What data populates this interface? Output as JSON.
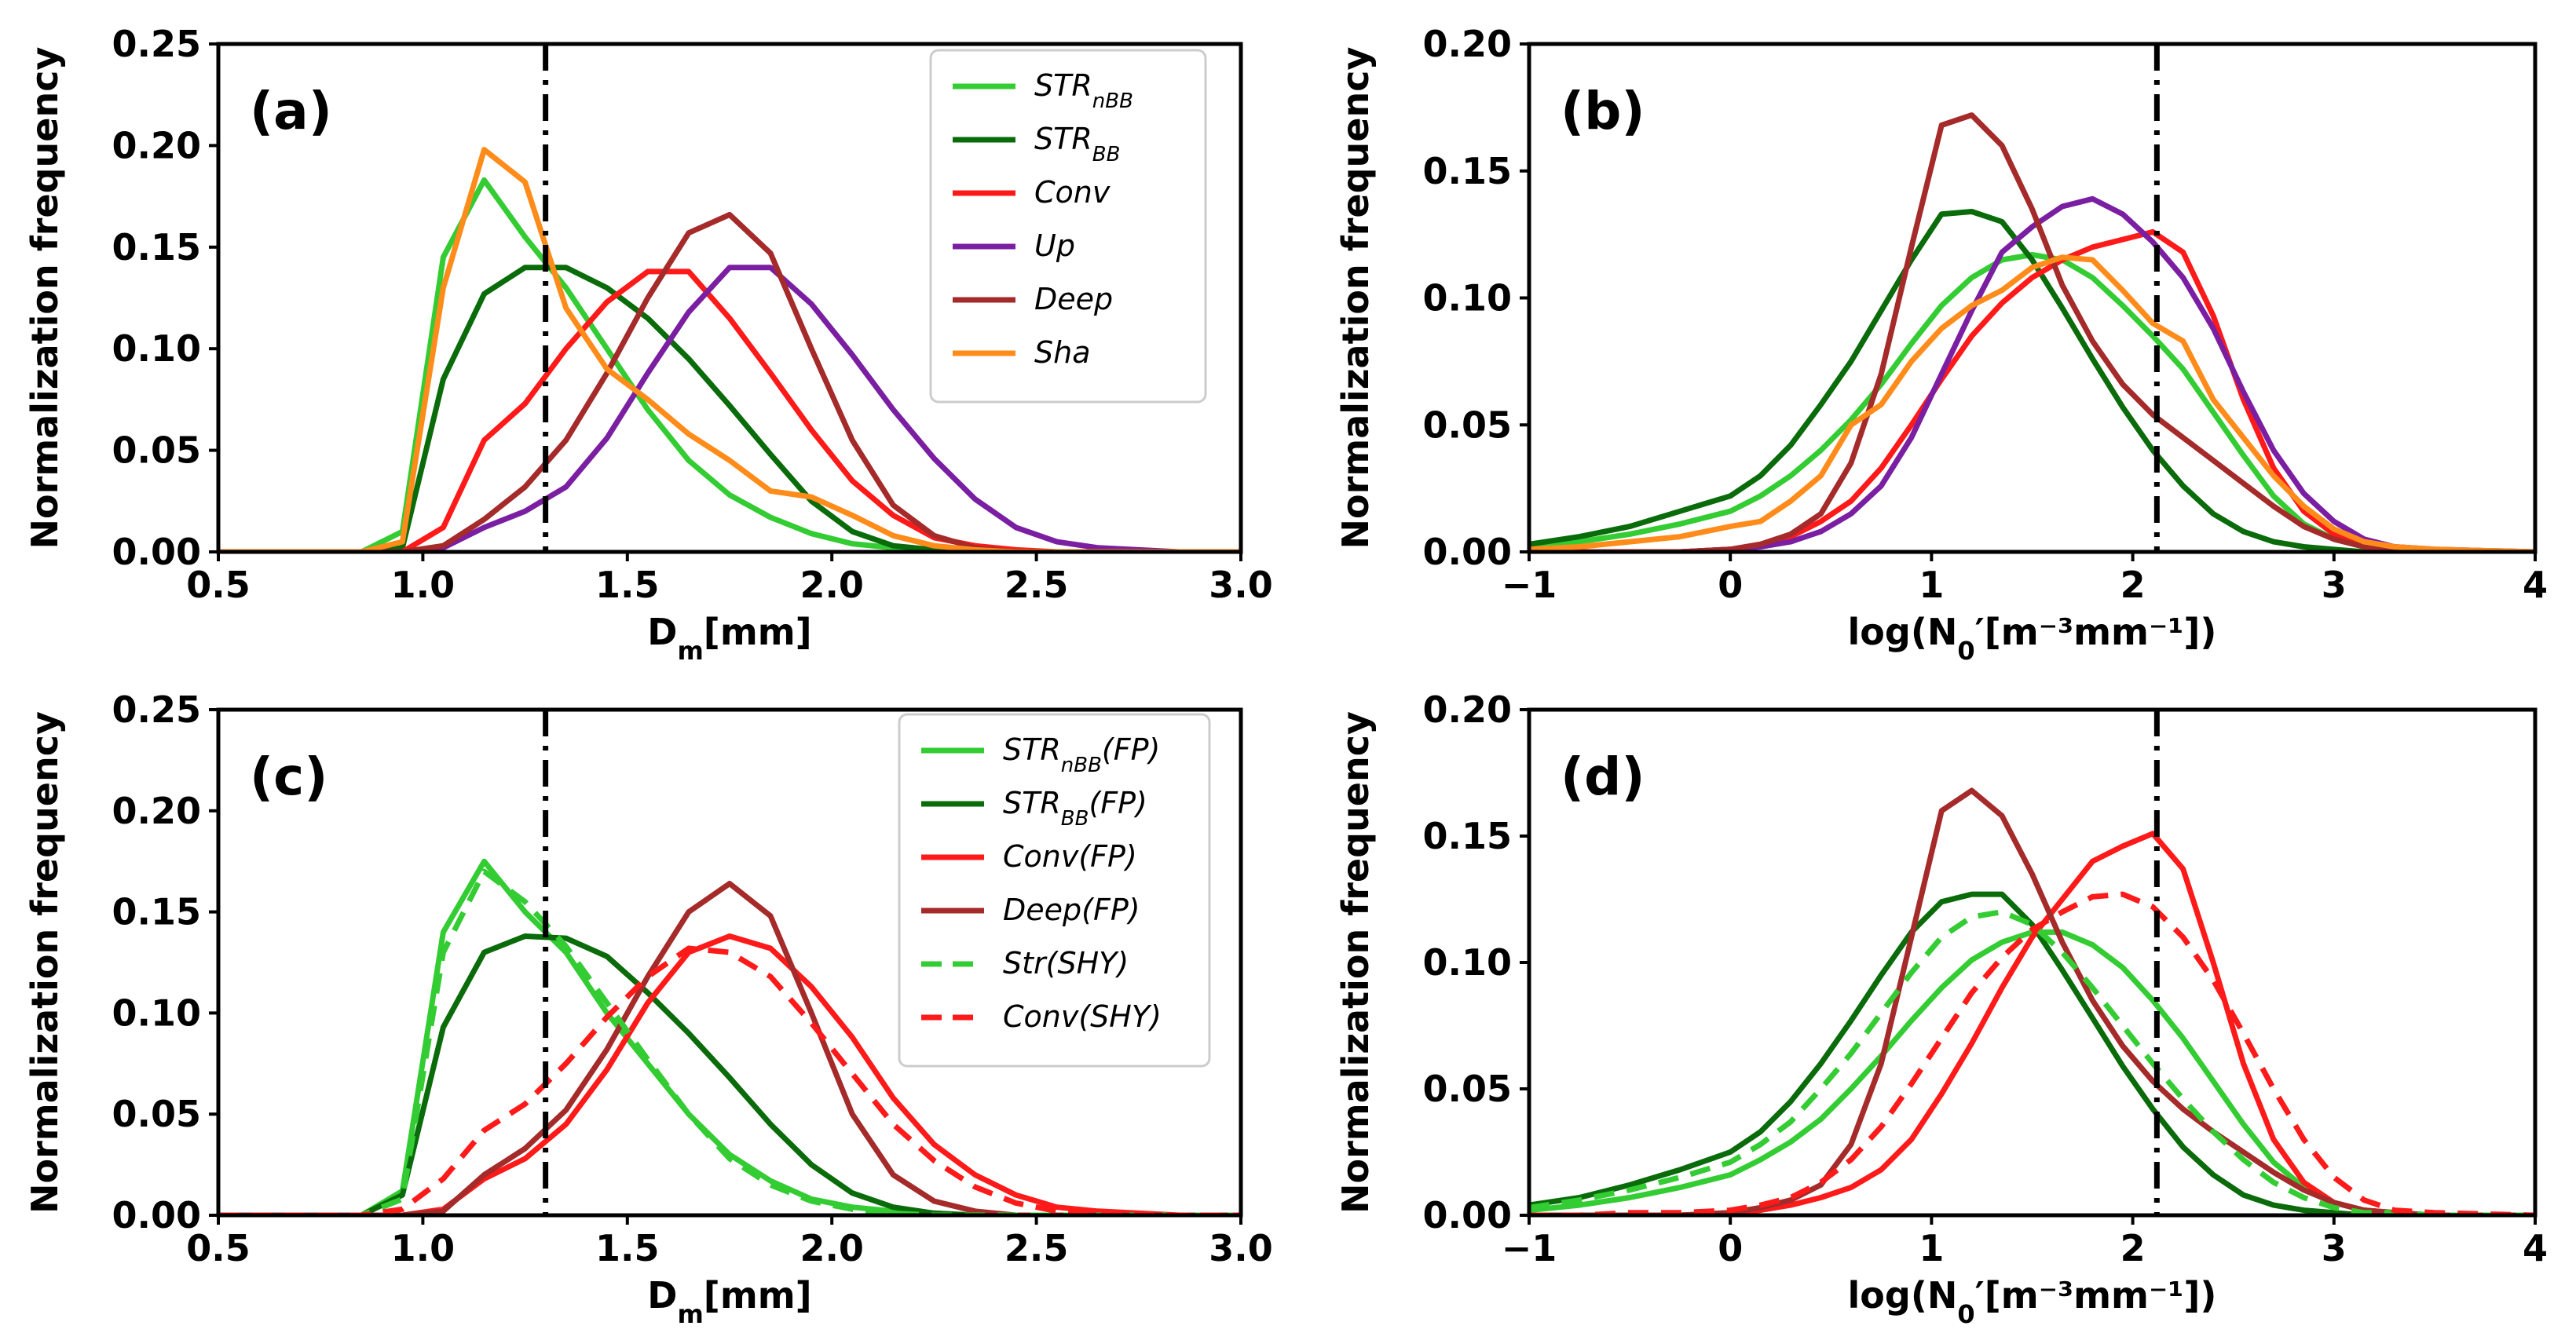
{
  "chart_data": [
    {
      "type": "line",
      "panel_label": "(a)",
      "xlabel_main": "D",
      "xlabel_sub": "m",
      "xlabel_tail": "[mm]",
      "ylabel": "Normalization frequency",
      "xlim": [
        0.5,
        3.0
      ],
      "ylim": [
        0,
        0.25
      ],
      "xticks": [
        "0.5",
        "1.0",
        "1.5",
        "2.0",
        "2.5",
        "3.0"
      ],
      "yticks": [
        "0.00",
        "0.05",
        "0.10",
        "0.15",
        "0.20",
        "0.25"
      ],
      "vline": 1.3,
      "legend_position": "top-right",
      "x": [
        0.5,
        0.85,
        0.95,
        1.05,
        1.15,
        1.25,
        1.35,
        1.45,
        1.55,
        1.65,
        1.75,
        1.85,
        1.95,
        2.05,
        2.15,
        2.25,
        2.35,
        2.45,
        2.55,
        2.65,
        2.75,
        2.85,
        3.0
      ],
      "series": [
        {
          "name": "STR",
          "sub": "nBB",
          "suffix": "",
          "color": "#33cc33",
          "dash": false,
          "values": [
            0,
            0,
            0.01,
            0.145,
            0.183,
            0.155,
            0.13,
            0.1,
            0.07,
            0.045,
            0.028,
            0.017,
            0.009,
            0.004,
            0.002,
            0.001,
            0,
            0,
            0,
            0,
            0,
            0,
            0
          ]
        },
        {
          "name": "STR",
          "sub": "BB",
          "suffix": "",
          "color": "#0a6b0a",
          "dash": false,
          "values": [
            0,
            0,
            0.002,
            0.085,
            0.127,
            0.14,
            0.14,
            0.13,
            0.115,
            0.095,
            0.072,
            0.048,
            0.025,
            0.01,
            0.003,
            0.001,
            0,
            0,
            0,
            0,
            0,
            0,
            0
          ]
        },
        {
          "name": "Conv",
          "sub": "",
          "suffix": "",
          "color": "#ff1a1a",
          "dash": false,
          "values": [
            0,
            0,
            0,
            0.012,
            0.055,
            0.073,
            0.1,
            0.123,
            0.138,
            0.138,
            0.115,
            0.088,
            0.06,
            0.035,
            0.018,
            0.007,
            0.003,
            0.001,
            0,
            0,
            0,
            0,
            0
          ]
        },
        {
          "name": "Up",
          "sub": "",
          "suffix": "",
          "color": "#7b1fa2",
          "dash": false,
          "values": [
            0,
            0,
            0,
            0.002,
            0.012,
            0.02,
            0.032,
            0.056,
            0.088,
            0.118,
            0.14,
            0.14,
            0.122,
            0.097,
            0.07,
            0.046,
            0.026,
            0.012,
            0.005,
            0.002,
            0.001,
            0,
            0
          ]
        },
        {
          "name": "Deep",
          "sub": "",
          "suffix": "",
          "color": "#a52a2a",
          "dash": false,
          "values": [
            0,
            0,
            0,
            0.003,
            0.016,
            0.032,
            0.055,
            0.088,
            0.125,
            0.157,
            0.166,
            0.147,
            0.1,
            0.055,
            0.023,
            0.008,
            0.002,
            0,
            0,
            0,
            0,
            0,
            0
          ]
        },
        {
          "name": "Sha",
          "sub": "",
          "suffix": "",
          "color": "#ff8c1a",
          "dash": false,
          "values": [
            0,
            0,
            0.005,
            0.13,
            0.198,
            0.182,
            0.12,
            0.09,
            0.075,
            0.058,
            0.045,
            0.03,
            0.027,
            0.018,
            0.008,
            0.003,
            0.001,
            0,
            0,
            0,
            0,
            0,
            0
          ]
        }
      ]
    },
    {
      "type": "line",
      "panel_label": "(b)",
      "xlabel_main": "log(N",
      "xlabel_sub": "0",
      "xlabel_tail": "′[m⁻³mm⁻¹])",
      "ylabel": "Normalization frequency",
      "xlim": [
        -1,
        4
      ],
      "ylim": [
        0,
        0.2
      ],
      "xticks": [
        "−1",
        "0",
        "1",
        "2",
        "3",
        "4"
      ],
      "yticks": [
        "0.00",
        "0.05",
        "0.10",
        "0.15",
        "0.20"
      ],
      "vline": 2.12,
      "x": [
        -1,
        -0.75,
        -0.5,
        -0.25,
        0,
        0.15,
        0.3,
        0.45,
        0.6,
        0.75,
        0.9,
        1.05,
        1.2,
        1.35,
        1.5,
        1.65,
        1.8,
        1.95,
        2.1,
        2.25,
        2.4,
        2.55,
        2.7,
        2.85,
        3.0,
        3.15,
        3.3,
        3.5,
        4.0
      ],
      "series": [
        {
          "name": "STR",
          "sub": "nBB",
          "color": "#33cc33",
          "dash": false,
          "values": [
            0.002,
            0.004,
            0.007,
            0.011,
            0.016,
            0.022,
            0.03,
            0.04,
            0.052,
            0.066,
            0.082,
            0.097,
            0.108,
            0.115,
            0.117,
            0.115,
            0.108,
            0.097,
            0.085,
            0.072,
            0.055,
            0.038,
            0.022,
            0.011,
            0.005,
            0.002,
            0.001,
            0,
            0
          ]
        },
        {
          "name": "STR",
          "sub": "BB",
          "color": "#0a6b0a",
          "dash": false,
          "values": [
            0.003,
            0.006,
            0.01,
            0.016,
            0.022,
            0.03,
            0.042,
            0.058,
            0.075,
            0.095,
            0.115,
            0.133,
            0.134,
            0.13,
            0.115,
            0.096,
            0.076,
            0.057,
            0.04,
            0.026,
            0.015,
            0.008,
            0.004,
            0.002,
            0.001,
            0,
            0,
            0,
            0
          ]
        },
        {
          "name": "Conv",
          "sub": "",
          "color": "#ff1a1a",
          "dash": false,
          "values": [
            0,
            0,
            0,
            0,
            0.001,
            0.003,
            0.006,
            0.012,
            0.02,
            0.033,
            0.05,
            0.068,
            0.085,
            0.098,
            0.108,
            0.115,
            0.12,
            0.123,
            0.126,
            0.118,
            0.093,
            0.06,
            0.033,
            0.016,
            0.007,
            0.003,
            0.001,
            0,
            0
          ]
        },
        {
          "name": "Up",
          "sub": "",
          "color": "#7b1fa2",
          "dash": false,
          "values": [
            0,
            0,
            0,
            0,
            0.001,
            0.002,
            0.004,
            0.008,
            0.015,
            0.026,
            0.045,
            0.07,
            0.095,
            0.118,
            0.128,
            0.136,
            0.139,
            0.133,
            0.122,
            0.108,
            0.088,
            0.063,
            0.04,
            0.023,
            0.012,
            0.005,
            0.002,
            0.001,
            0
          ]
        },
        {
          "name": "Deep",
          "sub": "",
          "color": "#a52a2a",
          "dash": false,
          "values": [
            0,
            0,
            0,
            0,
            0.001,
            0.003,
            0.007,
            0.015,
            0.035,
            0.07,
            0.12,
            0.168,
            0.172,
            0.16,
            0.135,
            0.105,
            0.083,
            0.066,
            0.054,
            0.045,
            0.036,
            0.027,
            0.018,
            0.01,
            0.005,
            0.002,
            0.001,
            0,
            0
          ]
        },
        {
          "name": "Sha",
          "sub": "",
          "color": "#ff8c1a",
          "dash": false,
          "values": [
            0.001,
            0.002,
            0.004,
            0.006,
            0.01,
            0.012,
            0.02,
            0.03,
            0.05,
            0.058,
            0.075,
            0.088,
            0.097,
            0.103,
            0.112,
            0.116,
            0.115,
            0.103,
            0.09,
            0.083,
            0.06,
            0.045,
            0.03,
            0.018,
            0.009,
            0.004,
            0.002,
            0.001,
            0
          ]
        }
      ]
    },
    {
      "type": "line",
      "panel_label": "(c)",
      "xlabel_main": "D",
      "xlabel_sub": "m",
      "xlabel_tail": "[mm]",
      "ylabel": "Normalization frequency",
      "xlim": [
        0.5,
        3.0
      ],
      "ylim": [
        0,
        0.25
      ],
      "xticks": [
        "0.5",
        "1.0",
        "1.5",
        "2.0",
        "2.5",
        "3.0"
      ],
      "yticks": [
        "0.00",
        "0.05",
        "0.10",
        "0.15",
        "0.20",
        "0.25"
      ],
      "vline": 1.3,
      "legend_position": "top-right",
      "x": [
        0.5,
        0.85,
        0.95,
        1.05,
        1.15,
        1.25,
        1.35,
        1.45,
        1.55,
        1.65,
        1.75,
        1.85,
        1.95,
        2.05,
        2.15,
        2.25,
        2.35,
        2.45,
        2.55,
        2.65,
        2.75,
        2.85,
        3.0
      ],
      "series": [
        {
          "name": "STR",
          "sub": "nBB",
          "suffix": "(FP)",
          "color": "#33cc33",
          "dash": false,
          "values": [
            0,
            0,
            0.012,
            0.14,
            0.175,
            0.15,
            0.13,
            0.1,
            0.075,
            0.05,
            0.03,
            0.017,
            0.008,
            0.004,
            0.002,
            0.001,
            0,
            0,
            0,
            0,
            0,
            0,
            0
          ]
        },
        {
          "name": "STR",
          "sub": "BB",
          "suffix": "(FP)",
          "color": "#0a6b0a",
          "dash": false,
          "values": [
            0,
            0,
            0.01,
            0.093,
            0.13,
            0.138,
            0.137,
            0.128,
            0.11,
            0.09,
            0.068,
            0.045,
            0.025,
            0.011,
            0.004,
            0.001,
            0,
            0,
            0,
            0,
            0,
            0,
            0
          ]
        },
        {
          "name": "Conv",
          "sub": "",
          "suffix": "(FP)",
          "color": "#ff1a1a",
          "dash": false,
          "values": [
            0,
            0,
            0,
            0.003,
            0.018,
            0.028,
            0.045,
            0.072,
            0.105,
            0.13,
            0.138,
            0.132,
            0.113,
            0.088,
            0.058,
            0.035,
            0.02,
            0.01,
            0.004,
            0.002,
            0.001,
            0,
            0
          ]
        },
        {
          "name": "Deep",
          "sub": "",
          "suffix": "(FP)",
          "color": "#a52a2a",
          "dash": false,
          "values": [
            0,
            0,
            0,
            0.002,
            0.02,
            0.033,
            0.052,
            0.082,
            0.118,
            0.15,
            0.164,
            0.148,
            0.1,
            0.05,
            0.02,
            0.007,
            0.002,
            0,
            0,
            0,
            0,
            0,
            0
          ]
        },
        {
          "name": "Str",
          "sub": "",
          "suffix": "(SHY)",
          "color": "#33cc33",
          "dash": true,
          "values": [
            0,
            0,
            0.008,
            0.13,
            0.17,
            0.155,
            0.133,
            0.105,
            0.077,
            0.05,
            0.028,
            0.015,
            0.007,
            0.003,
            0.001,
            0,
            0,
            0,
            0,
            0,
            0,
            0,
            0
          ]
        },
        {
          "name": "Conv",
          "sub": "",
          "suffix": "(SHY)",
          "color": "#ff1a1a",
          "dash": true,
          "values": [
            0,
            0,
            0.003,
            0.018,
            0.042,
            0.055,
            0.075,
            0.098,
            0.118,
            0.132,
            0.13,
            0.118,
            0.095,
            0.07,
            0.045,
            0.027,
            0.014,
            0.006,
            0.002,
            0.001,
            0,
            0,
            0
          ]
        }
      ]
    },
    {
      "type": "line",
      "panel_label": "(d)",
      "xlabel_main": "log(N",
      "xlabel_sub": "0",
      "xlabel_tail": "′[m⁻³mm⁻¹])",
      "ylabel": "Normalization frequency",
      "xlim": [
        -1,
        4
      ],
      "ylim": [
        0,
        0.2
      ],
      "xticks": [
        "−1",
        "0",
        "1",
        "2",
        "3",
        "4"
      ],
      "yticks": [
        "0.00",
        "0.05",
        "0.10",
        "0.15",
        "0.20"
      ],
      "vline": 2.12,
      "x": [
        -1,
        -0.75,
        -0.5,
        -0.25,
        0,
        0.15,
        0.3,
        0.45,
        0.6,
        0.75,
        0.9,
        1.05,
        1.2,
        1.35,
        1.5,
        1.65,
        1.8,
        1.95,
        2.1,
        2.25,
        2.4,
        2.55,
        2.7,
        2.85,
        3.0,
        3.15,
        3.3,
        3.5,
        4.0
      ],
      "series": [
        {
          "name": "STR",
          "sub": "nBB",
          "color": "#33cc33",
          "dash": false,
          "values": [
            0.002,
            0.004,
            0.007,
            0.011,
            0.016,
            0.022,
            0.029,
            0.038,
            0.05,
            0.063,
            0.077,
            0.09,
            0.101,
            0.108,
            0.112,
            0.112,
            0.107,
            0.098,
            0.085,
            0.07,
            0.053,
            0.036,
            0.021,
            0.011,
            0.005,
            0.002,
            0.001,
            0,
            0
          ]
        },
        {
          "name": "STR",
          "sub": "BB",
          "color": "#0a6b0a",
          "dash": false,
          "values": [
            0.004,
            0.007,
            0.012,
            0.018,
            0.025,
            0.033,
            0.045,
            0.06,
            0.077,
            0.095,
            0.112,
            0.124,
            0.127,
            0.127,
            0.115,
            0.097,
            0.078,
            0.059,
            0.042,
            0.027,
            0.016,
            0.008,
            0.004,
            0.002,
            0.001,
            0,
            0,
            0,
            0
          ]
        },
        {
          "name": "Conv",
          "sub": "",
          "color": "#ff1a1a",
          "dash": false,
          "values": [
            0,
            0,
            0,
            0,
            0.001,
            0.002,
            0.004,
            0.007,
            0.011,
            0.018,
            0.03,
            0.048,
            0.068,
            0.09,
            0.11,
            0.125,
            0.14,
            0.146,
            0.151,
            0.137,
            0.1,
            0.06,
            0.03,
            0.013,
            0.005,
            0.002,
            0.001,
            0,
            0
          ]
        },
        {
          "name": "Deep",
          "sub": "",
          "color": "#a52a2a",
          "dash": false,
          "values": [
            0,
            0,
            0,
            0,
            0.001,
            0.003,
            0.006,
            0.012,
            0.028,
            0.06,
            0.11,
            0.16,
            0.168,
            0.158,
            0.135,
            0.108,
            0.085,
            0.067,
            0.053,
            0.042,
            0.033,
            0.025,
            0.017,
            0.01,
            0.005,
            0.002,
            0.001,
            0,
            0
          ]
        },
        {
          "name": "Str",
          "sub": "",
          "color": "#33cc33",
          "dash": true,
          "values": [
            0.003,
            0.006,
            0.01,
            0.015,
            0.021,
            0.028,
            0.037,
            0.05,
            0.064,
            0.08,
            0.096,
            0.11,
            0.118,
            0.12,
            0.115,
            0.104,
            0.09,
            0.075,
            0.06,
            0.046,
            0.033,
            0.022,
            0.013,
            0.007,
            0.003,
            0.001,
            0.001,
            0,
            0
          ]
        },
        {
          "name": "Conv",
          "sub": "",
          "color": "#ff1a1a",
          "dash": true,
          "values": [
            0,
            0,
            0.001,
            0.001,
            0.002,
            0.004,
            0.007,
            0.013,
            0.022,
            0.035,
            0.052,
            0.07,
            0.088,
            0.102,
            0.113,
            0.12,
            0.126,
            0.127,
            0.122,
            0.11,
            0.093,
            0.072,
            0.05,
            0.03,
            0.015,
            0.006,
            0.002,
            0.001,
            0
          ]
        }
      ]
    }
  ]
}
